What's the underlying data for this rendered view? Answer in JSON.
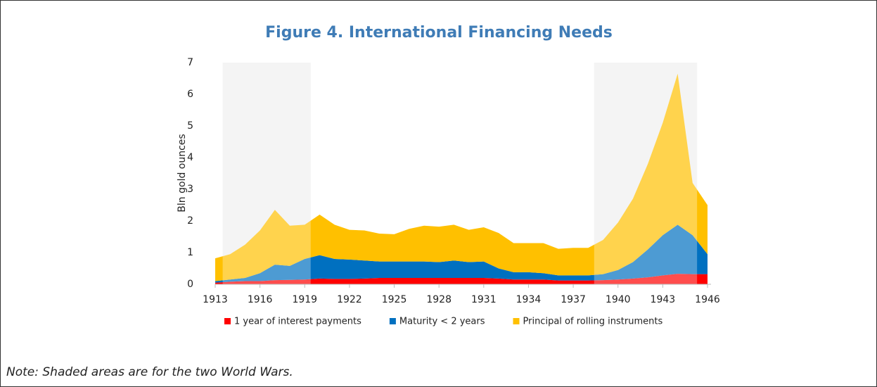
{
  "chart_data": {
    "type": "stacked-area",
    "title": "Figure 4. International Financing Needs",
    "ylabel": "Bln gold ounces",
    "note": "Note: Shaded areas are for the two World Wars.",
    "x": [
      1913,
      1914,
      1915,
      1916,
      1917,
      1918,
      1919,
      1920,
      1921,
      1922,
      1923,
      1924,
      1925,
      1926,
      1927,
      1928,
      1929,
      1930,
      1931,
      1932,
      1933,
      1934,
      1935,
      1936,
      1937,
      1938,
      1939,
      1940,
      1941,
      1942,
      1943,
      1944,
      1945,
      1946
    ],
    "series": [
      {
        "name": "1 year of interest payments",
        "color": "#ff0000",
        "values": [
          0.05,
          0.08,
          0.1,
          0.1,
          0.13,
          0.14,
          0.15,
          0.18,
          0.17,
          0.17,
          0.18,
          0.2,
          0.2,
          0.2,
          0.2,
          0.2,
          0.2,
          0.2,
          0.2,
          0.18,
          0.15,
          0.15,
          0.15,
          0.12,
          0.12,
          0.12,
          0.13,
          0.15,
          0.18,
          0.22,
          0.28,
          0.33,
          0.32,
          0.32
        ]
      },
      {
        "name": "Maturity < 2 years",
        "color": "#0070c0",
        "values": [
          0.05,
          0.07,
          0.1,
          0.25,
          0.49,
          0.44,
          0.65,
          0.74,
          0.63,
          0.61,
          0.57,
          0.52,
          0.52,
          0.52,
          0.52,
          0.5,
          0.55,
          0.5,
          0.52,
          0.32,
          0.23,
          0.23,
          0.2,
          0.16,
          0.16,
          0.16,
          0.19,
          0.3,
          0.52,
          0.88,
          1.27,
          1.55,
          1.23,
          0.63
        ]
      },
      {
        "name": "Principal of rolling instruments",
        "color": "#ffc000",
        "values": [
          0.72,
          0.8,
          1.05,
          1.35,
          1.73,
          1.27,
          1.08,
          1.28,
          1.08,
          0.94,
          0.95,
          0.88,
          0.86,
          1.03,
          1.13,
          1.12,
          1.13,
          1.02,
          1.08,
          1.12,
          0.92,
          0.92,
          0.95,
          0.84,
          0.87,
          0.87,
          1.08,
          1.5,
          2.0,
          2.7,
          3.55,
          4.77,
          1.65,
          1.55
        ]
      }
    ],
    "shaded_regions": [
      [
        1913.5,
        1919.4
      ],
      [
        1938.4,
        1945.3
      ]
    ],
    "xlim": [
      1913,
      1946
    ],
    "xticks": [
      1913,
      1916,
      1919,
      1922,
      1925,
      1928,
      1931,
      1934,
      1937,
      1940,
      1943,
      1946
    ],
    "ylim": [
      0,
      7
    ],
    "yticks": [
      0,
      1,
      2,
      3,
      4,
      5,
      6,
      7
    ],
    "title_color": "#3f7cb6"
  }
}
